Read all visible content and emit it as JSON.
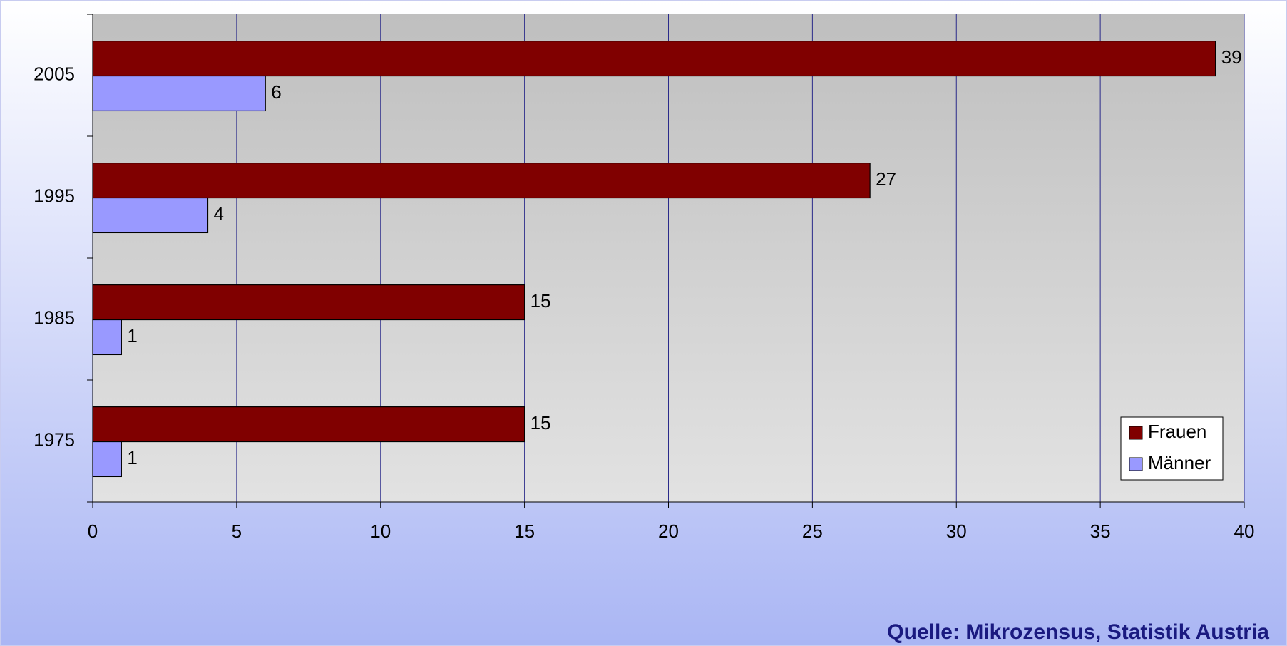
{
  "chart_data": {
    "type": "barh",
    "categories": [
      "1975",
      "1985",
      "1995",
      "2005"
    ],
    "series": [
      {
        "name": "Frauen",
        "color": "#800000",
        "values": [
          15,
          15,
          27,
          39
        ]
      },
      {
        "name": "Männer",
        "color": "#9999ff",
        "values": [
          1,
          1,
          4,
          6
        ]
      }
    ],
    "xlim": [
      0,
      40
    ],
    "xticks": [
      0,
      5,
      10,
      15,
      20,
      25,
      30,
      35,
      40
    ],
    "grid": true,
    "legend": "lower right",
    "source": "Quelle: Mikrozensus, Statistik Austria"
  }
}
